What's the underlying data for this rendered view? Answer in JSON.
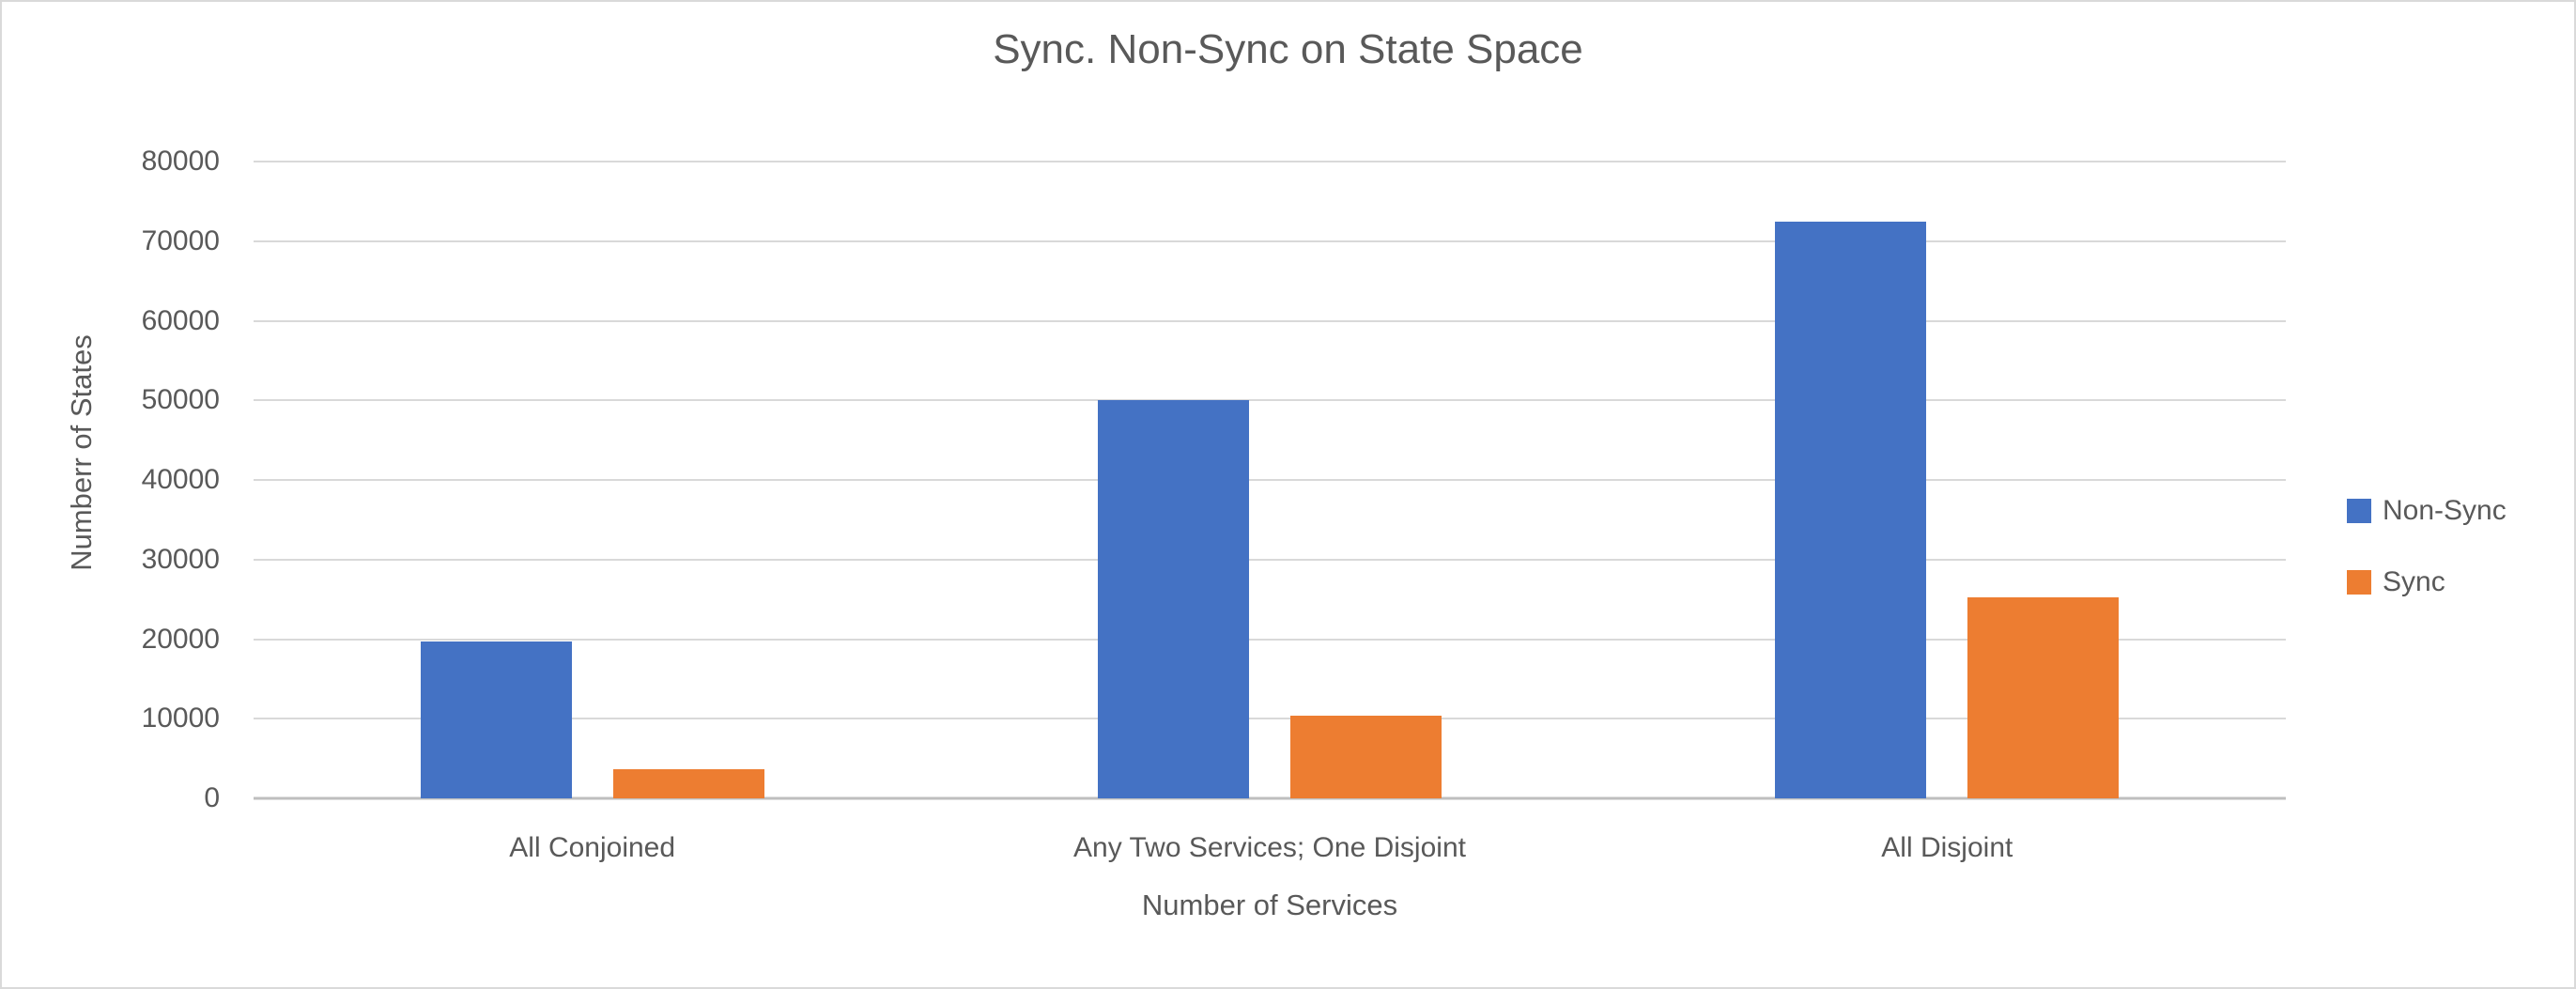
{
  "chart_data": {
    "type": "bar",
    "title": "Sync. Non-Sync on State Space",
    "xlabel": "Number of Services",
    "ylabel": "Numberr of States",
    "categories": [
      "All Conjoined",
      "Any Two Services; One Disjoint",
      "All Disjoint"
    ],
    "series": [
      {
        "name": "Non-Sync",
        "color": "#4472C4",
        "values": [
          19700,
          50000,
          72500
        ]
      },
      {
        "name": "Sync",
        "color": "#ED7D31",
        "values": [
          3700,
          10400,
          25200
        ]
      }
    ],
    "ylim": [
      0,
      80000
    ],
    "yticks": [
      0,
      10000,
      20000,
      30000,
      40000,
      50000,
      60000,
      70000,
      80000
    ],
    "grid": "horizontal",
    "legend_position": "right"
  },
  "colors": {
    "text": "#595959",
    "gridline": "#D9D9D9",
    "axis_line": "#BFBFBF",
    "background": "#FFFFFF",
    "frame_border": "#D9D9D9"
  }
}
